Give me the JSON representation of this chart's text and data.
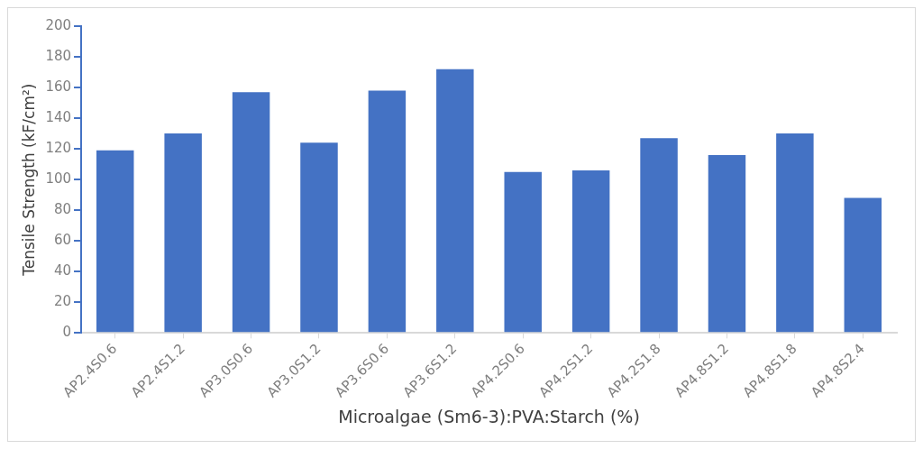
{
  "chart_data": {
    "type": "bar",
    "xlabel": "Microalgae (Sm6-3):PVA:Starch (%)",
    "ylabel": "Tensile Strength (kF/cm²)",
    "categories": [
      "AP2.4S0.6",
      "AP2.4S1.2",
      "AP3.0S0.6",
      "AP3.0S1.2",
      "AP3.6S0.6",
      "AP3.6S1.2",
      "AP4.2S0.6",
      "AP4.2S1.2",
      "AP4.2S1.8",
      "AP4.8S1.2",
      "AP4.8S1.8",
      "AP4.8S2.4"
    ],
    "values": [
      119,
      130,
      157,
      124,
      158,
      172,
      105,
      106,
      127,
      116,
      130,
      88
    ],
    "color": "#4472c4",
    "ylim": [
      0,
      200
    ],
    "yticks": [
      0,
      20,
      40,
      60,
      80,
      100,
      120,
      140,
      160,
      180,
      200
    ],
    "grid": false,
    "legend": false
  }
}
